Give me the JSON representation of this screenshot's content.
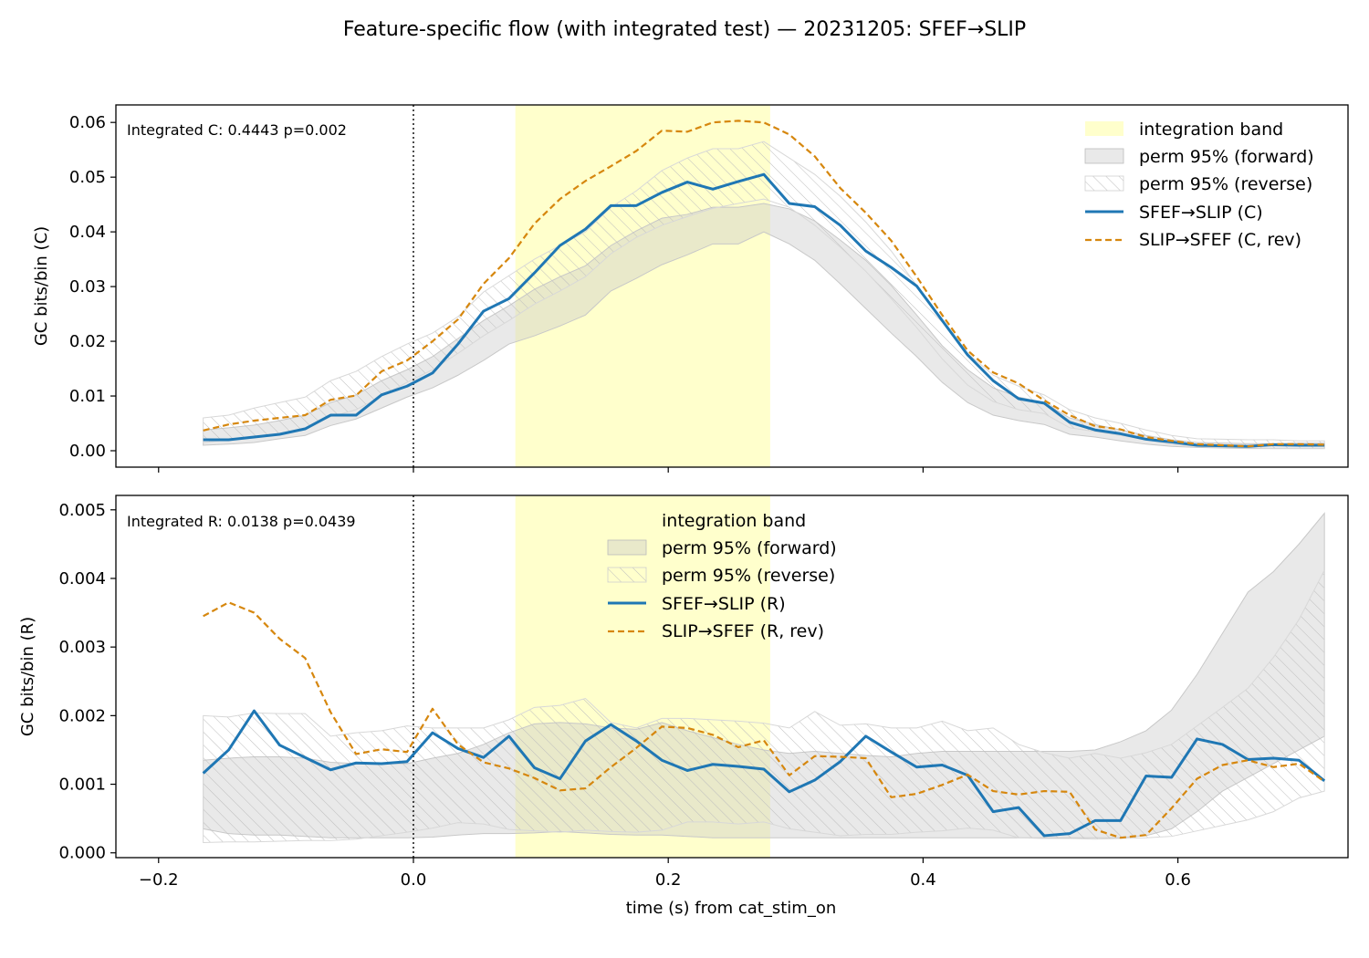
{
  "title": "Feature-specific flow (with integrated test) — 20231205: SFEF→SLIP",
  "xlabel": "time (s) from cat_stim_on",
  "x_ticks": [
    -0.2,
    0.0,
    0.2,
    0.4,
    0.6
  ],
  "x_tick_labels": [
    "−0.2",
    "0.0",
    "0.2",
    "0.4",
    "0.6"
  ],
  "colors": {
    "forward": "#1f77b4",
    "reverse": "#d6870e",
    "band": "#ffffcc",
    "perm_fill": "#c8c8c8",
    "hatch": "#bdbdbd"
  },
  "chart_data": [
    {
      "type": "line",
      "ylabel": "GC bits/bin (C)",
      "annotation": "Integrated C: 0.4443  p=0.002",
      "xlim": [
        -0.2335,
        0.7335
      ],
      "ylim": [
        -0.003,
        0.0632
      ],
      "y_ticks": [
        0.0,
        0.01,
        0.02,
        0.03,
        0.04,
        0.05,
        0.06
      ],
      "y_tick_labels": [
        "0.00",
        "0.01",
        "0.02",
        "0.03",
        "0.04",
        "0.05",
        "0.06"
      ],
      "grid": false,
      "legend_position": "upper right",
      "vline_x": 0.0,
      "integration_band": [
        0.08,
        0.28
      ],
      "x": [
        -0.165,
        -0.145,
        -0.125,
        -0.105,
        -0.085,
        -0.065,
        -0.045,
        -0.025,
        -0.005,
        0.015,
        0.035,
        0.055,
        0.075,
        0.095,
        0.115,
        0.135,
        0.155,
        0.175,
        0.195,
        0.215,
        0.235,
        0.255,
        0.275,
        0.295,
        0.315,
        0.335,
        0.355,
        0.375,
        0.395,
        0.415,
        0.435,
        0.455,
        0.475,
        0.495,
        0.515,
        0.535,
        0.555,
        0.575,
        0.595,
        0.615,
        0.635,
        0.655,
        0.675,
        0.695,
        0.715
      ],
      "legend": [
        "integration band",
        "perm 95% (forward)",
        "perm 95% (reverse)",
        "SFEF→SLIP (C)",
        "SLIP→SFEF (C, rev)"
      ],
      "series": [
        {
          "name": "SFEF→SLIP (C)",
          "style": "solid",
          "values": [
            0.002,
            0.002,
            0.0025,
            0.003,
            0.004,
            0.0065,
            0.0065,
            0.0102,
            0.0118,
            0.0142,
            0.0195,
            0.0255,
            0.0278,
            0.0325,
            0.0375,
            0.0405,
            0.0448,
            0.0448,
            0.0472,
            0.0491,
            0.0478,
            0.0492,
            0.0505,
            0.0452,
            0.0446,
            0.0412,
            0.0365,
            0.0335,
            0.0301,
            0.0238,
            0.0175,
            0.0128,
            0.0095,
            0.0087,
            0.0052,
            0.0038,
            0.0031,
            0.0021,
            0.0016,
            0.001,
            0.0009,
            0.0008,
            0.0011,
            0.001,
            0.001
          ]
        },
        {
          "name": "SLIP→SFEF (C, rev)",
          "style": "dashed",
          "values": [
            0.0037,
            0.0048,
            0.0055,
            0.006,
            0.0065,
            0.0093,
            0.0101,
            0.0145,
            0.0165,
            0.02,
            0.024,
            0.0305,
            0.0352,
            0.0415,
            0.046,
            0.0493,
            0.052,
            0.0548,
            0.0585,
            0.0583,
            0.06,
            0.0603,
            0.06,
            0.0578,
            0.0538,
            0.048,
            0.0435,
            0.0384,
            0.0318,
            0.0248,
            0.0183,
            0.0143,
            0.0123,
            0.0092,
            0.0065,
            0.0045,
            0.0039,
            0.0025,
            0.0018,
            0.0012,
            0.001,
            0.0008,
            0.0012,
            0.0012,
            0.0011
          ]
        }
      ],
      "perm_forward": {
        "lower": [
          0.001,
          0.0012,
          0.0015,
          0.0022,
          0.0028,
          0.0046,
          0.0058,
          0.0078,
          0.0098,
          0.0115,
          0.0138,
          0.0165,
          0.0195,
          0.021,
          0.0228,
          0.0248,
          0.0292,
          0.0315,
          0.034,
          0.0358,
          0.0378,
          0.0378,
          0.04,
          0.0378,
          0.0348,
          0.0305,
          0.026,
          0.0215,
          0.0172,
          0.0125,
          0.0088,
          0.0065,
          0.0055,
          0.0048,
          0.003,
          0.0025,
          0.0018,
          0.0012,
          0.0008,
          0.0006,
          0.0005,
          0.0004,
          0.0004,
          0.0004,
          0.0004
        ],
        "upper": [
          0.0038,
          0.0042,
          0.0047,
          0.0055,
          0.0065,
          0.0088,
          0.0102,
          0.0128,
          0.0148,
          0.0172,
          0.0205,
          0.0238,
          0.0265,
          0.0295,
          0.0318,
          0.0338,
          0.0375,
          0.0402,
          0.0425,
          0.0432,
          0.0445,
          0.0445,
          0.0452,
          0.0442,
          0.042,
          0.0385,
          0.0348,
          0.0302,
          0.0248,
          0.0192,
          0.0148,
          0.0115,
          0.0098,
          0.0088,
          0.006,
          0.0048,
          0.0038,
          0.0028,
          0.002,
          0.0015,
          0.0014,
          0.0013,
          0.0013,
          0.0014,
          0.0014
        ]
      },
      "perm_reverse": {
        "lower": [
          0.0015,
          0.002,
          0.0025,
          0.0032,
          0.004,
          0.0062,
          0.0075,
          0.01,
          0.0125,
          0.0148,
          0.0178,
          0.021,
          0.0238,
          0.0268,
          0.0292,
          0.0318,
          0.036,
          0.039,
          0.0412,
          0.0428,
          0.0443,
          0.0452,
          0.046,
          0.0445,
          0.0412,
          0.0372,
          0.0328,
          0.0278,
          0.0225,
          0.0168,
          0.012,
          0.009,
          0.0075,
          0.0068,
          0.0042,
          0.0035,
          0.0028,
          0.002,
          0.0012,
          0.0008,
          0.0006,
          0.0005,
          0.0004,
          0.0004,
          0.0004
        ],
        "upper": [
          0.006,
          0.0065,
          0.0078,
          0.0088,
          0.0098,
          0.0128,
          0.0145,
          0.0172,
          0.0195,
          0.0215,
          0.0245,
          0.029,
          0.032,
          0.035,
          0.0375,
          0.04,
          0.0445,
          0.0475,
          0.0512,
          0.0535,
          0.0552,
          0.0552,
          0.0565,
          0.0535,
          0.0505,
          0.0465,
          0.0418,
          0.0365,
          0.0302,
          0.0238,
          0.0178,
          0.0138,
          0.0118,
          0.0102,
          0.0075,
          0.006,
          0.005,
          0.0038,
          0.0028,
          0.0022,
          0.0021,
          0.002,
          0.002,
          0.0018,
          0.0018
        ]
      }
    },
    {
      "type": "line",
      "ylabel": "GC bits/bin (R)",
      "annotation": "Integrated R: 0.0138  p=0.0439",
      "xlim": [
        -0.2335,
        0.7335
      ],
      "ylim": [
        -7e-05,
        0.00521
      ],
      "y_ticks": [
        0.0,
        0.001,
        0.002,
        0.003,
        0.004,
        0.005
      ],
      "y_tick_labels": [
        "0.000",
        "0.001",
        "0.002",
        "0.003",
        "0.004",
        "0.005"
      ],
      "grid": false,
      "legend_position": "upper center",
      "vline_x": 0.0,
      "integration_band": [
        0.08,
        0.28
      ],
      "x": [
        -0.165,
        -0.145,
        -0.125,
        -0.105,
        -0.085,
        -0.065,
        -0.045,
        -0.025,
        -0.005,
        0.015,
        0.035,
        0.055,
        0.075,
        0.095,
        0.115,
        0.135,
        0.155,
        0.175,
        0.195,
        0.215,
        0.235,
        0.255,
        0.275,
        0.295,
        0.315,
        0.335,
        0.355,
        0.375,
        0.395,
        0.415,
        0.435,
        0.455,
        0.475,
        0.495,
        0.515,
        0.535,
        0.555,
        0.575,
        0.595,
        0.615,
        0.635,
        0.655,
        0.675,
        0.695,
        0.715
      ],
      "legend": [
        "integration band",
        "perm 95% (forward)",
        "perm 95% (reverse)",
        "SFEF→SLIP (R)",
        "SLIP→SFEF (R, rev)"
      ],
      "series": [
        {
          "name": "SFEF→SLIP (R)",
          "style": "solid",
          "values": [
            0.00116,
            0.0015,
            0.00207,
            0.00157,
            0.00139,
            0.00121,
            0.00131,
            0.0013,
            0.00133,
            0.00175,
            0.00152,
            0.00139,
            0.0017,
            0.00124,
            0.00108,
            0.00163,
            0.00187,
            0.00163,
            0.00135,
            0.0012,
            0.00129,
            0.00126,
            0.00122,
            0.00089,
            0.00106,
            0.00133,
            0.0017,
            0.00147,
            0.00125,
            0.00128,
            0.00113,
            0.0006,
            0.00066,
            0.00025,
            0.00028,
            0.00047,
            0.00047,
            0.00112,
            0.0011,
            0.00166,
            0.00158,
            0.00136,
            0.00138,
            0.00135,
            0.00105
          ]
        },
        {
          "name": "SLIP→SFEF (R, rev)",
          "style": "dashed",
          "values": [
            0.00345,
            0.00365,
            0.0035,
            0.00312,
            0.00284,
            0.00205,
            0.00144,
            0.00151,
            0.00147,
            0.0021,
            0.00158,
            0.00132,
            0.00123,
            0.00109,
            0.00091,
            0.00094,
            0.00125,
            0.00153,
            0.00184,
            0.00182,
            0.00172,
            0.00154,
            0.00164,
            0.00113,
            0.00141,
            0.0014,
            0.00138,
            0.00081,
            0.00086,
            0.00099,
            0.00114,
            0.0009,
            0.00085,
            0.0009,
            0.00089,
            0.00034,
            0.00022,
            0.00026,
            0.00065,
            0.00108,
            0.00128,
            0.00135,
            0.00125,
            0.0013,
            0.00104
          ]
        }
      ],
      "perm_forward": {
        "lower": [
          0.00035,
          0.00028,
          0.00026,
          0.00026,
          0.00024,
          0.00022,
          0.00022,
          0.00022,
          0.00022,
          0.00023,
          0.00026,
          0.00028,
          0.00028,
          0.00029,
          0.00031,
          0.00029,
          0.00027,
          0.00026,
          0.00026,
          0.00024,
          0.00022,
          0.00022,
          0.00022,
          0.00022,
          0.00022,
          0.00022,
          0.00022,
          0.00022,
          0.00022,
          0.00022,
          0.00022,
          0.00022,
          0.00022,
          0.00022,
          0.00022,
          0.00022,
          0.00022,
          0.00025,
          0.00035,
          0.0006,
          0.0009,
          0.0011,
          0.0013,
          0.0015,
          0.0017
        ],
        "upper": [
          0.00135,
          0.00138,
          0.0014,
          0.0014,
          0.00138,
          0.00132,
          0.0013,
          0.0013,
          0.0013,
          0.00138,
          0.00145,
          0.00158,
          0.00175,
          0.00188,
          0.0019,
          0.00188,
          0.00182,
          0.0018,
          0.0019,
          0.00178,
          0.00168,
          0.00158,
          0.0015,
          0.00145,
          0.00148,
          0.00145,
          0.00142,
          0.0014,
          0.00145,
          0.00148,
          0.00148,
          0.00148,
          0.00148,
          0.00148,
          0.00148,
          0.0015,
          0.00162,
          0.00178,
          0.00208,
          0.0026,
          0.0032,
          0.0038,
          0.0041,
          0.0045,
          0.00495
        ]
      },
      "perm_reverse": {
        "lower": [
          0.00015,
          0.00016,
          0.00016,
          0.00017,
          0.00018,
          0.00018,
          0.0002,
          0.00025,
          0.0003,
          0.00036,
          0.00044,
          0.00042,
          0.00034,
          0.00032,
          0.0003,
          0.00033,
          0.00031,
          0.0003,
          0.00033,
          0.00045,
          0.00045,
          0.00042,
          0.00045,
          0.00035,
          0.0003,
          0.00025,
          0.00027,
          0.00027,
          0.0003,
          0.00032,
          0.00036,
          0.00033,
          0.00022,
          0.00021,
          0.00021,
          0.0002,
          0.00021,
          0.00022,
          0.00024,
          0.00032,
          0.0004,
          0.00048,
          0.0006,
          0.0008,
          0.0009
        ],
        "upper": [
          0.002,
          0.00198,
          0.00204,
          0.00203,
          0.00203,
          0.0017,
          0.00175,
          0.00178,
          0.00185,
          0.00182,
          0.00182,
          0.00182,
          0.00194,
          0.00212,
          0.00215,
          0.00225,
          0.0019,
          0.00182,
          0.00196,
          0.00196,
          0.00194,
          0.00192,
          0.00189,
          0.00182,
          0.00206,
          0.00186,
          0.00188,
          0.00182,
          0.00182,
          0.00192,
          0.00178,
          0.00182,
          0.00158,
          0.00146,
          0.00138,
          0.00145,
          0.00138,
          0.00146,
          0.00158,
          0.00185,
          0.00212,
          0.0024,
          0.00285,
          0.0034,
          0.00412
        ]
      }
    }
  ]
}
